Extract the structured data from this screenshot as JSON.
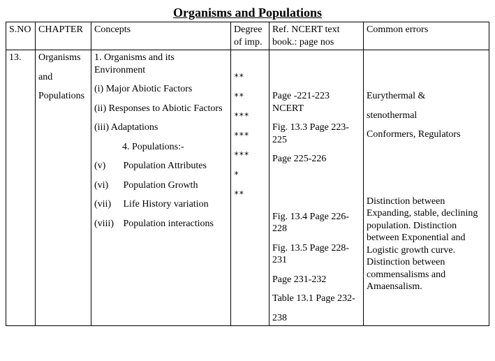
{
  "title": "Organisms and Populations",
  "columns": {
    "sno": "S.NO",
    "chapter": "CHAPTER",
    "concepts": "Concepts",
    "degree": "Degree of imp.",
    "ref": "Ref. NCERT text book.: page nos",
    "errors": "Common errors"
  },
  "row": {
    "sno": "13.",
    "chapter": [
      "Organisms",
      "and",
      "Populations"
    ],
    "concepts": [
      {
        "text": "1. Organisms and its Environment",
        "cls": "indent-a"
      },
      {
        "text": "(i) Major Abiotic Factors",
        "cls": "indent-b"
      },
      {
        "text": "(ii) Responses to Abiotic Factors",
        "cls": "indent-b"
      },
      {
        "text": "(iii) Adaptations",
        "cls": "indent-b"
      },
      {
        "text": "4.   Populations:-",
        "cls": "indent-c"
      },
      {
        "label": "(v)",
        "text": "Population Attributes",
        "cls": "indent-d"
      },
      {
        "label": "(vi)",
        "text": "Population Growth",
        "cls": "indent-d"
      },
      {
        "label": "(vii)",
        "text": "Life History variation",
        "cls": "indent-d"
      },
      {
        "label": "(viii)",
        "text": "Population interactions",
        "cls": "indent-d"
      }
    ],
    "degrees": [
      "",
      "**",
      "**",
      "***",
      "***",
      "***",
      "*",
      "**",
      ""
    ],
    "refs": [
      "",
      "",
      "Page -221-223 NCERT",
      "Fig. 13.3 Page 223-225",
      "Page 225-226",
      "",
      "",
      "Fig. 13.4 Page 226-228",
      "Fig. 13.5 Page 228-231",
      "Page 231-232",
      "Table 13.1 Page 232-",
      "238"
    ],
    "errors_block1": [
      "",
      "",
      "Eurythermal &",
      "stenothermal",
      "Conformers, Regulators"
    ],
    "errors_block2": "Distinction between Expanding, stable, declining population. Distinction between Exponential and Logistic growth curve. Distinction between commensalisms and Amaensalism."
  }
}
